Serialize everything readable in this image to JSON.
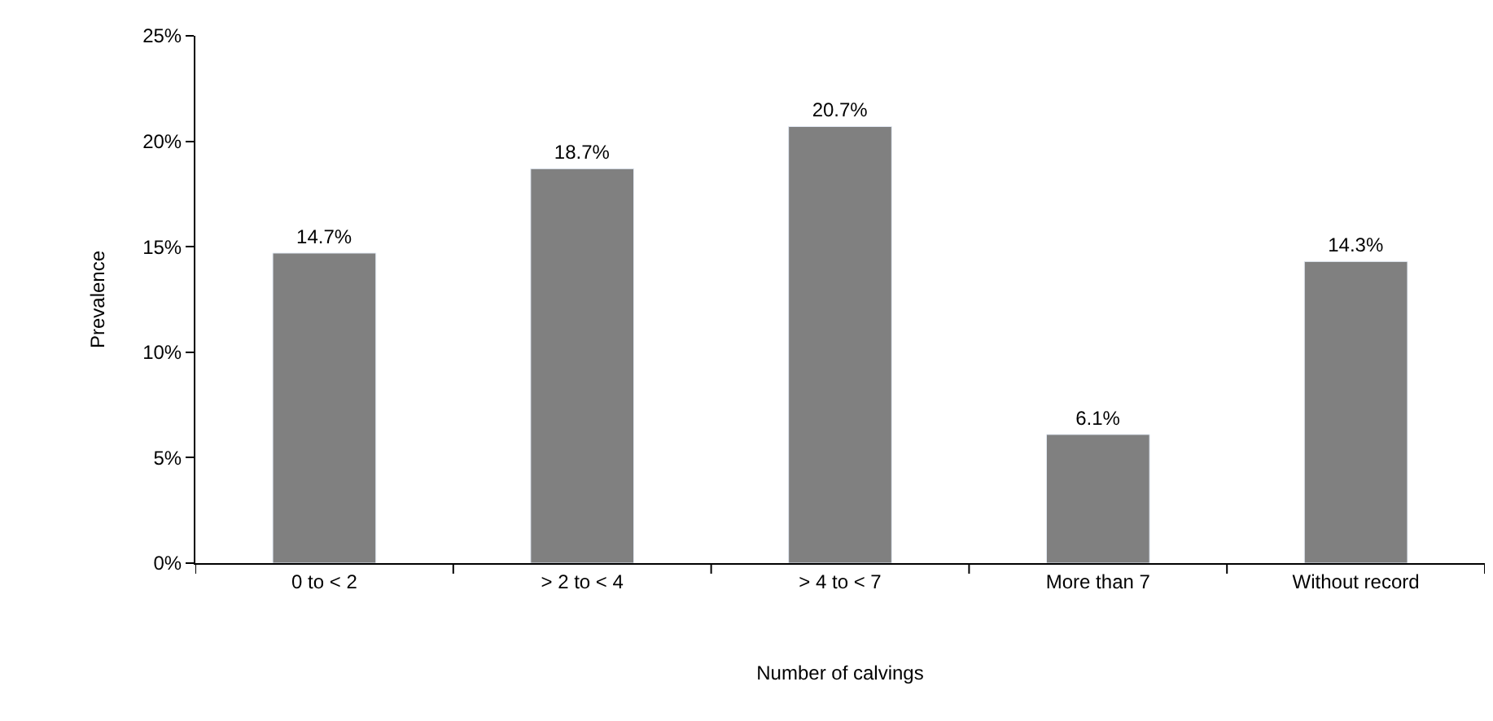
{
  "chart_data": {
    "type": "bar",
    "categories": [
      "0 to < 2",
      "> 2 to < 4",
      "> 4 to < 7",
      "More than 7",
      "Without record"
    ],
    "values": [
      14.7,
      18.7,
      20.7,
      6.1,
      14.3
    ],
    "value_labels": [
      "14.7%",
      "18.7%",
      "20.7%",
      "6.1%",
      "14.3%"
    ],
    "color": "#808080",
    "xlabel": "Number of calvings",
    "ylabel": "Prevalence",
    "ylim": [
      0,
      25
    ],
    "yticks": [
      {
        "value": 0,
        "label": "0%"
      },
      {
        "value": 5,
        "label": "5%"
      },
      {
        "value": 10,
        "label": "10%"
      },
      {
        "value": 15,
        "label": "15%"
      },
      {
        "value": 20,
        "label": "20%"
      },
      {
        "value": 25,
        "label": "25%"
      }
    ],
    "legend": false
  }
}
